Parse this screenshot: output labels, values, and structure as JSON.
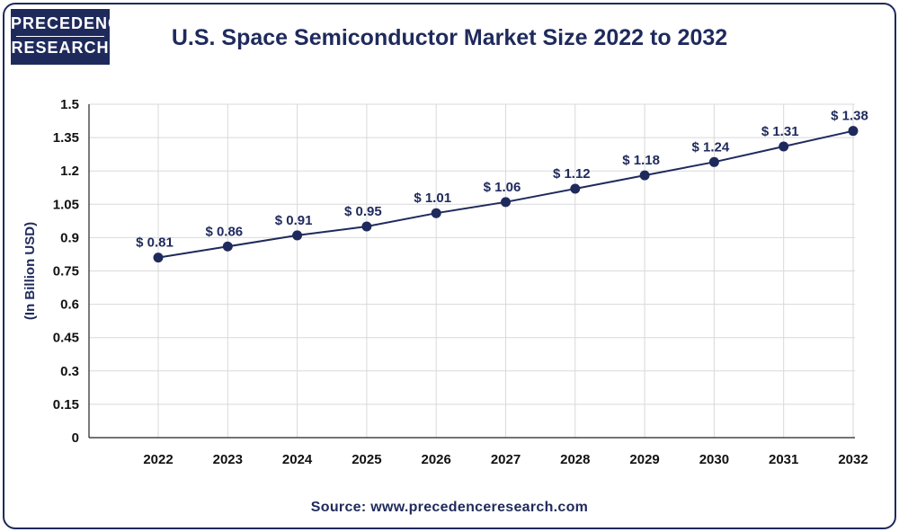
{
  "logo": {
    "line1": "PRECEDENCE",
    "line2": "RESEARCH"
  },
  "colors": {
    "accent": "#1f2a5c",
    "grid": "#d9d9d9",
    "line": "#1f2a5c"
  },
  "source": "Source: www.precedenceresearch.com",
  "chart_data": {
    "type": "line",
    "title": "U.S. Space Semiconductor Market Size 2022 to 2032",
    "xlabel": "",
    "ylabel": "(In Billion USD)",
    "categories": [
      "2022",
      "2023",
      "2024",
      "2025",
      "2026",
      "2027",
      "2028",
      "2029",
      "2030",
      "2031",
      "2032"
    ],
    "series": [
      {
        "name": "U.S. Space Semiconductor Market Size",
        "values": [
          0.81,
          0.86,
          0.91,
          0.95,
          1.01,
          1.06,
          1.12,
          1.18,
          1.24,
          1.31,
          1.38
        ],
        "labels": [
          "$ 0.81",
          "$ 0.86",
          "$ 0.91",
          "$ 0.95",
          "$ 1.01",
          "$ 1.06",
          "$ 1.12",
          "$ 1.18",
          "$ 1.24",
          "$ 1.31",
          "$ 1.38"
        ]
      }
    ],
    "ylim": [
      0,
      1.5
    ],
    "yticks": [
      "0",
      "0.15",
      "0.3",
      "0.45",
      "0.6",
      "0.75",
      "0.9",
      "1.05",
      "1.2",
      "1.35",
      "1.5"
    ],
    "grid": true
  }
}
